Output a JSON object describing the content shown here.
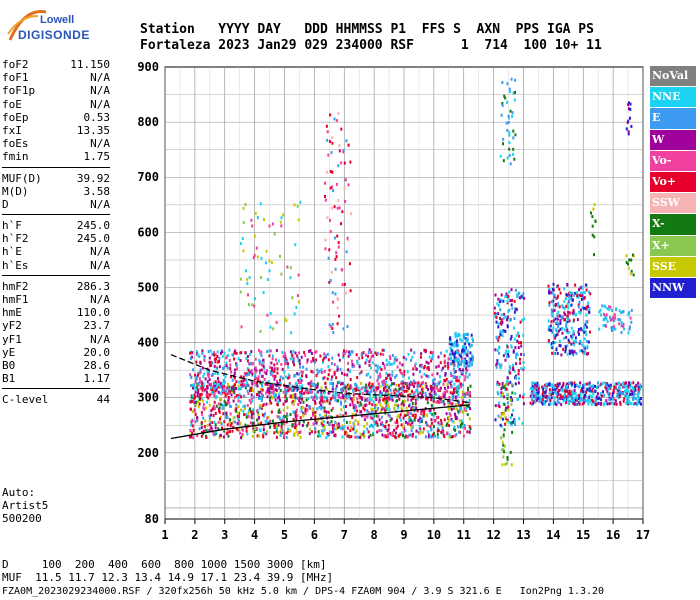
{
  "logo": {
    "top": "Lowell",
    "bottom": "DIGISONDE"
  },
  "header": {
    "line1": "Station   YYYY DAY   DDD HHMMSS P1  FFS S  AXN  PPS IGA PS",
    "line2": "Fortaleza 2023 Jan29 029 234000 RSF      1  714  100 10+ 11"
  },
  "params": [
    [
      {
        "k": "foF2",
        "v": "11.150"
      },
      {
        "k": "foF1",
        "v": "N/A"
      },
      {
        "k": "foF1p",
        "v": "N/A"
      },
      {
        "k": "foE",
        "v": "N/A"
      },
      {
        "k": "foEp",
        "v": "0.53"
      },
      {
        "k": "fxI",
        "v": "13.35"
      },
      {
        "k": "foEs",
        "v": "N/A"
      },
      {
        "k": "fmin",
        "v": "1.75"
      }
    ],
    [
      {
        "k": "MUF(D)",
        "v": "39.92"
      },
      {
        "k": "M(D)",
        "v": "3.58"
      },
      {
        "k": "D",
        "v": "N/A"
      }
    ],
    [
      {
        "k": "h`F",
        "v": "245.0"
      },
      {
        "k": "h`F2",
        "v": "245.0"
      },
      {
        "k": "h`E",
        "v": "N/A"
      },
      {
        "k": "h`Es",
        "v": "N/A"
      }
    ],
    [
      {
        "k": "hmF2",
        "v": "286.3"
      },
      {
        "k": "hmF1",
        "v": "N/A"
      },
      {
        "k": "hmE",
        "v": "110.0"
      },
      {
        "k": "yF2",
        "v": "23.7"
      },
      {
        "k": "yF1",
        "v": "N/A"
      },
      {
        "k": "yE",
        "v": "20.0"
      },
      {
        "k": "B0",
        "v": "28.6"
      },
      {
        "k": "B1",
        "v": "1.17"
      }
    ],
    [
      {
        "k": "C-level",
        "v": "44"
      }
    ]
  ],
  "auto": [
    "Auto:",
    "Artist5",
    "500200"
  ],
  "legend": [
    {
      "label": "NoVal",
      "color": "#808080"
    },
    {
      "label": "NNE",
      "color": "#19d3f0"
    },
    {
      "label": "E",
      "color": "#3c9bf0"
    },
    {
      "label": "W",
      "color": "#a0009b"
    },
    {
      "label": "Vo-",
      "color": "#f040a0"
    },
    {
      "label": "Vo+",
      "color": "#e8002d"
    },
    {
      "label": "SSW",
      "color": "#f8b4b4"
    },
    {
      "label": "X-",
      "color": "#137a13"
    },
    {
      "label": "X+",
      "color": "#88c850"
    },
    {
      "label": "SSE",
      "color": "#c8c800"
    },
    {
      "label": "NNW",
      "color": "#2020d0"
    }
  ],
  "chart_data": {
    "type": "scatter",
    "x_ticks": [
      "1",
      "2",
      "3",
      "4",
      "5",
      "6",
      "7",
      "8",
      "9",
      "10",
      "11",
      "12",
      "13",
      "14",
      "15",
      "16",
      "17"
    ],
    "y_ticks": [
      "80",
      "200",
      "300",
      "400",
      "500",
      "600",
      "700",
      "800",
      "900"
    ],
    "xlim": [
      1,
      17
    ],
    "ylim": [
      80,
      900
    ],
    "grid": true,
    "legend_position": "right",
    "curves": [
      {
        "points": [
          [
            1.2,
            226
          ],
          [
            3,
            243
          ],
          [
            5,
            256
          ],
          [
            7,
            266
          ],
          [
            9,
            276
          ],
          [
            11.2,
            287
          ]
        ],
        "color": "#000"
      },
      {
        "points": [
          [
            1.2,
            378
          ],
          [
            2.5,
            350
          ],
          [
            4,
            330
          ],
          [
            5.5,
            318
          ],
          [
            7,
            308
          ],
          [
            8.5,
            304
          ],
          [
            10,
            300
          ],
          [
            11.2,
            291
          ]
        ],
        "color": "#000"
      }
    ]
  },
  "footer": {
    "line1": "D     100  200  400  600  800 1000 1500 3000 [km]",
    "line2": "MUF  11.5 11.7 12.3 13.4 14.9 17.1 23.4 39.9 [MHz]",
    "line3": "FZA0M_2023029234000.RSF / 320fx256h 50 kHz 5.0 km / DPS-4 FZA0M 904 / 3.9 S 321.6 E   Ion2Png 1.3.20"
  }
}
